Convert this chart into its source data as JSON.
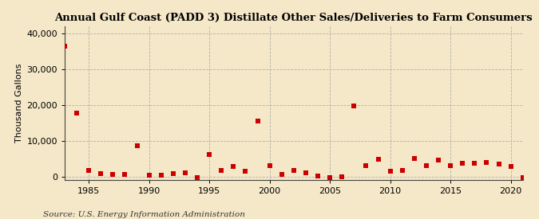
{
  "title": "Annual Gulf Coast (PADD 3) Distillate Other Sales/Deliveries to Farm Consumers",
  "ylabel": "Thousand Gallons",
  "source": "Source: U.S. Energy Information Administration",
  "background_color": "#f5e8c8",
  "plot_background_color": "#f5e8c8",
  "marker_color": "#cc0000",
  "marker_size": 18,
  "grid_color": "#aaaaaa",
  "xlim": [
    1983,
    2021
  ],
  "ylim": [
    -800,
    42000
  ],
  "yticks": [
    0,
    10000,
    20000,
    30000,
    40000
  ],
  "ytick_labels": [
    "0",
    "10,000",
    "20,000",
    "30,000",
    "40,000"
  ],
  "xticks": [
    1985,
    1990,
    1995,
    2000,
    2005,
    2010,
    2015,
    2020
  ],
  "data": {
    "1983": 36500,
    "1984": 17700,
    "1985": 1700,
    "1986": 800,
    "1987": 700,
    "1988": 600,
    "1989": 8700,
    "1990": 400,
    "1991": 500,
    "1992": 800,
    "1993": 1000,
    "1994": -200,
    "1995": 6300,
    "1996": 1800,
    "1997": 2800,
    "1998": 1600,
    "1999": 15500,
    "2000": 3100,
    "2001": 700,
    "2002": 1800,
    "2003": 1100,
    "2004": 200,
    "2005": -200,
    "2006": -100,
    "2007": 19800,
    "2008": 3200,
    "2009": 4900,
    "2010": 1600,
    "2011": 1800,
    "2012": 5000,
    "2013": 3100,
    "2014": 4700,
    "2015": 3100,
    "2016": 3800,
    "2017": 3800,
    "2018": 4000,
    "2019": 3600,
    "2020": 2800,
    "2021": -200
  }
}
